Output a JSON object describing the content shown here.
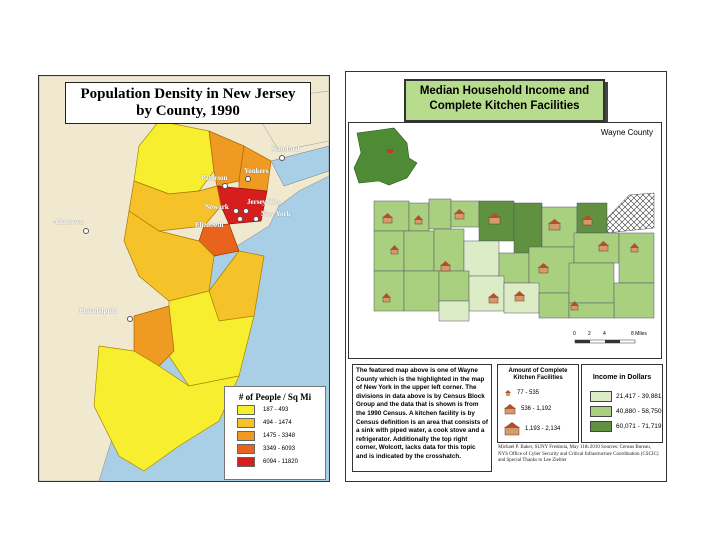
{
  "nj_map": {
    "title_line1": "Population Density in New Jersey",
    "title_line2": "by County, 1990",
    "cities": [
      "Stamford",
      "Yonkers",
      "Paterson",
      "Newark",
      "Jersey City",
      "New York",
      "Elizabeth",
      "Allentown",
      "Philadelphia"
    ],
    "legend": {
      "title": "# of People / Sq Mi",
      "items": [
        {
          "label": "187 - 493",
          "color": "#f6ee2e"
        },
        {
          "label": "494 - 1474",
          "color": "#f5c329"
        },
        {
          "label": "1475 - 3348",
          "color": "#ef9a22"
        },
        {
          "label": "3349 - 6093",
          "color": "#e8641c"
        },
        {
          "label": "6094 - 11820",
          "color": "#d81d1d"
        }
      ]
    }
  },
  "ny_map": {
    "title_line1": "Median Household Income and",
    "title_line2": "Complete Kitchen Facilities",
    "county_label": "Wayne County",
    "description": "The featured map above is one of Wayne County which is the highlighted in the map of New York in the upper left corner. The divisions in data above is by Census Block Group and the data that is shown is from the 1990 Census. A kitchen facility is by Census definition is an area that consists of a sink with piped water, a cook stove and a refrigerator. Additionally the top right corner, Wolcott, lacks data for this topic and is indicated by the crosshatch.",
    "kitchen_legend": {
      "title_line1": "Amount of Complete",
      "title_line2": "Kitchen Facilities",
      "items": [
        "77 - 535",
        "536 - 1,192",
        "1,193 - 2,134"
      ]
    },
    "income_legend": {
      "title": "Income in Dollars",
      "items": [
        {
          "label": "21,417 - 39,881",
          "color": "#dcecc7"
        },
        {
          "label": "40,880 - 58,750",
          "color": "#a8d07f"
        },
        {
          "label": "60,071 - 71,719",
          "color": "#5f9140"
        }
      ]
    },
    "scale_labels": [
      "0",
      "2",
      "4",
      "8 Miles"
    ],
    "credits": "Michael P. Baker, SUNY Fredonia, May 11th 2010 Sources: Census Bureau, NYS Office of Cyber Security and Critical Infrastructure Coordination (CSCIC) and Special Thanks to Lee Ziebler"
  }
}
